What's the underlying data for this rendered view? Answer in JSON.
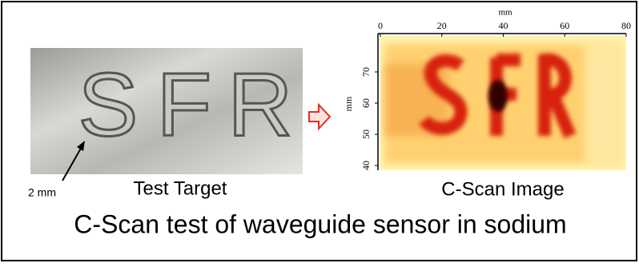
{
  "left_panel": {
    "letters": [
      "S",
      "F",
      "R"
    ],
    "annotation": "2 mm",
    "caption": "Test Target"
  },
  "right_panel": {
    "x_axis_label": "mm",
    "x_ticks": [
      0,
      20,
      40,
      60,
      80
    ],
    "y_axis_label": "mm",
    "y_ticks": [
      40,
      50,
      60,
      70
    ],
    "caption": "C-Scan Image"
  },
  "caption": "C-Scan test of waveguide sensor in sodium"
}
